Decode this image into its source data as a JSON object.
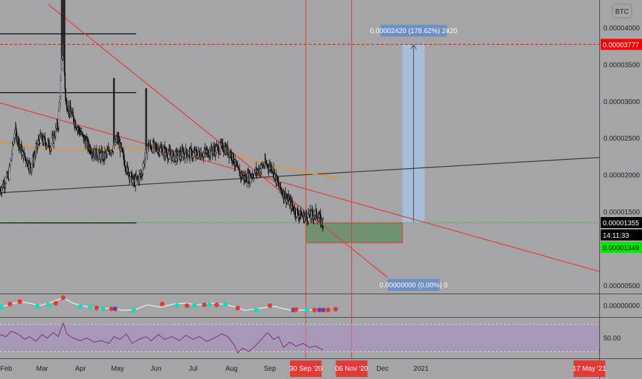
{
  "chart_data": {
    "type": "candlestick",
    "currency_badge": "BTC",
    "price_axis_labels": [
      "0.00004000",
      "0.00003500",
      "0.00003000",
      "0.00002500",
      "0.00002000",
      "0.00001500",
      "0.00000500"
    ],
    "price_axis_range": [
      3.9e-06,
      4.38e-05
    ],
    "x_axis_labels": [
      {
        "label": "Feb",
        "x": "2020-02-01"
      },
      {
        "label": "Mar",
        "x": "2020-03-01"
      },
      {
        "label": "Apr",
        "x": "2020-04-01"
      },
      {
        "label": "May",
        "x": "2020-05-01"
      },
      {
        "label": "Jun",
        "x": "2020-06-01"
      },
      {
        "label": "Jul",
        "x": "2020-07-01"
      },
      {
        "label": "Aug",
        "x": "2020-08-01"
      },
      {
        "label": "Sep",
        "x": "2020-09-01"
      },
      {
        "label": "Dec",
        "x": "2020-12-01"
      },
      {
        "label": "2021",
        "x": "2021-01-01"
      }
    ],
    "x_range": [
      "2020-01-27",
      "2021-05-25"
    ],
    "date_badges": [
      {
        "label": "30 Sep '20",
        "x": "2020-09-30"
      },
      {
        "label": "06 Nov '20",
        "x": "2020-11-06"
      },
      {
        "label": "17 May '21",
        "x": "2021-05-17"
      }
    ],
    "price_badges": {
      "target": {
        "label": "0.00003777",
        "value": 3.777e-05,
        "color": "#ff0000"
      },
      "last": {
        "label": "0.00001355",
        "value": 1.355e-05,
        "color": "#000000"
      },
      "countdown": {
        "label": "14:11:33",
        "color": "#000000"
      },
      "support": {
        "label": "0.00001349",
        "value": 1.349e-05,
        "color": "#00e600"
      }
    },
    "projection_labels": {
      "upper": "0.00002420 (178.62%) 2420",
      "lower": "0.00000000 (0.00%) 0"
    },
    "price_path": [
      [
        "2020-01-27",
        1.8e-05
      ],
      [
        "2020-02-03",
        2e-05
      ],
      [
        "2020-02-08",
        2.6e-05
      ],
      [
        "2020-02-14",
        2.3e-05
      ],
      [
        "2020-02-21",
        2.1e-05
      ],
      [
        "2020-02-28",
        2.5e-05
      ],
      [
        "2020-03-08",
        2.4e-05
      ],
      [
        "2020-03-14",
        2.7e-05
      ],
      [
        "2020-03-18",
        3.8e-05
      ],
      [
        "2020-03-20",
        3e-05
      ],
      [
        "2020-03-28",
        2.7e-05
      ],
      [
        "2020-04-05",
        2.45e-05
      ],
      [
        "2020-04-12",
        2.3e-05
      ],
      [
        "2020-04-20",
        2.25e-05
      ],
      [
        "2020-04-28",
        2.4e-05
      ],
      [
        "2020-05-01",
        2.5e-05
      ],
      [
        "2020-05-08",
        2.1e-05
      ],
      [
        "2020-05-14",
        1.9e-05
      ],
      [
        "2020-05-20",
        2e-05
      ],
      [
        "2020-05-25",
        2.4e-05
      ],
      [
        "2020-06-05",
        2.35e-05
      ],
      [
        "2020-06-15",
        2.25e-05
      ],
      [
        "2020-06-25",
        2.3e-05
      ],
      [
        "2020-07-05",
        2.28e-05
      ],
      [
        "2020-07-15",
        2.32e-05
      ],
      [
        "2020-07-25",
        2.38e-05
      ],
      [
        "2020-08-01",
        2.28e-05
      ],
      [
        "2020-08-06",
        2.05e-05
      ],
      [
        "2020-08-12",
        1.95e-05
      ],
      [
        "2020-08-20",
        2.03e-05
      ],
      [
        "2020-08-28",
        2.15e-05
      ],
      [
        "2020-09-03",
        2.1e-05
      ],
      [
        "2020-09-08",
        1.85e-05
      ],
      [
        "2020-09-12",
        1.75e-05
      ],
      [
        "2020-09-16",
        1.65e-05
      ],
      [
        "2020-09-22",
        1.5e-05
      ],
      [
        "2020-09-28",
        1.43e-05
      ],
      [
        "2020-10-04",
        1.45e-05
      ],
      [
        "2020-10-08",
        1.48e-05
      ],
      [
        "2020-10-12",
        1.38e-05
      ],
      [
        "2020-10-14",
        1.35e-05
      ]
    ],
    "ma_path": [
      [
        "2020-01-27",
        2.45e-05
      ],
      [
        "2020-02-20",
        2.38e-05
      ],
      [
        "2020-03-15",
        2.34e-05
      ],
      [
        "2020-04-10",
        2.35e-05
      ],
      [
        "2020-05-05",
        2.37e-05
      ],
      [
        "2020-06-01",
        2.34e-05
      ],
      [
        "2020-07-01",
        2.31e-05
      ],
      [
        "2020-08-01",
        2.28e-05
      ],
      [
        "2020-09-01",
        2.14e-05
      ],
      [
        "2020-10-01",
        2.03e-05
      ],
      [
        "2020-10-27",
        1.96e-05
      ]
    ],
    "trendlines": [
      {
        "name": "upper-diagonal",
        "color": "#e53935",
        "from": [
          "2020-03-06",
          4.32e-05
        ],
        "to": [
          "2020-12-05",
          6.1e-06
        ]
      },
      {
        "name": "lower-diagonal",
        "color": "#e53935",
        "from": [
          "2020-01-27",
          2.98e-05
        ],
        "to": [
          "2021-05-25",
          6.9e-06
        ]
      },
      {
        "name": "rising-support",
        "color": "#2e3b2e",
        "from": [
          "2020-01-27",
          1.76e-05
        ],
        "to": [
          "2021-05-25",
          2.24e-05
        ]
      }
    ],
    "horizontal_levels": [
      {
        "name": "resistance-high",
        "value": 3.92e-05,
        "from": "2020-01-27",
        "to": "2020-05-16",
        "color": "#000000"
      },
      {
        "name": "resistance-mid",
        "value": 3.12e-05,
        "from": "2020-01-27",
        "to": "2020-05-16",
        "color": "#000000"
      },
      {
        "name": "support-low",
        "value": 1.35e-05,
        "from": "2020-01-27",
        "to": "2020-05-16",
        "color": "#000000"
      }
    ],
    "dotted_levels": [
      {
        "name": "target-line",
        "value": 3.777e-05,
        "color": "#ff0000"
      },
      {
        "name": "last-price-line",
        "value": 1.355e-05,
        "color": "#00b400"
      }
    ],
    "vertical_lines": [
      "2020-09-30",
      "2020-11-06"
    ],
    "zones": {
      "buy_zone": {
        "x": [
          "2020-09-30",
          "2020-12-17"
        ],
        "y": [
          1.08e-05,
          1.35e-05
        ],
        "fill": "#5f8c62",
        "stroke": "#e53935"
      },
      "projection": {
        "x": [
          "2020-12-17",
          "2021-01-04"
        ],
        "y": [
          1.35e-05,
          3.77e-05
        ],
        "fill": "#a8c4e6"
      }
    },
    "oscillator": {
      "zero_label": "0.00000000",
      "range": [
        -1,
        1
      ],
      "line": [
        [
          "2020-01-27",
          -0.2
        ],
        [
          "2020-02-05",
          0.2
        ],
        [
          "2020-02-12",
          0.5
        ],
        [
          "2020-02-20",
          0.3
        ],
        [
          "2020-02-28",
          0.0
        ],
        [
          "2020-03-08",
          0.4
        ],
        [
          "2020-03-18",
          1.0
        ],
        [
          "2020-03-26",
          0.3
        ],
        [
          "2020-04-05",
          -0.1
        ],
        [
          "2020-04-15",
          -0.4
        ],
        [
          "2020-04-25",
          -0.3
        ],
        [
          "2020-05-05",
          -0.6
        ],
        [
          "2020-05-15",
          -0.5
        ],
        [
          "2020-05-25",
          0.1
        ],
        [
          "2020-06-05",
          -0.2
        ],
        [
          "2020-06-15",
          0.2
        ],
        [
          "2020-06-25",
          0.3
        ],
        [
          "2020-07-05",
          0.1
        ],
        [
          "2020-07-15",
          0.3
        ],
        [
          "2020-07-25",
          0.2
        ],
        [
          "2020-08-05",
          -0.2
        ],
        [
          "2020-08-12",
          -0.6
        ],
        [
          "2020-08-25",
          -0.3
        ],
        [
          "2020-09-05",
          -0.1
        ],
        [
          "2020-09-12",
          -0.4
        ],
        [
          "2020-09-20",
          -0.6
        ],
        [
          "2020-10-01",
          -0.55
        ],
        [
          "2020-10-14",
          -0.55
        ]
      ],
      "dots": [
        [
          "2020-01-28",
          -0.2,
          "#00e0c0"
        ],
        [
          "2020-02-04",
          0.2,
          "#e53935"
        ],
        [
          "2020-02-12",
          0.5,
          "#e53935"
        ],
        [
          "2020-02-26",
          -0.1,
          "#00e0c0"
        ],
        [
          "2020-03-06",
          0.1,
          "#00e0c0"
        ],
        [
          "2020-03-12",
          0.3,
          "#e53935"
        ],
        [
          "2020-03-18",
          1.0,
          "#e53935"
        ],
        [
          "2020-04-01",
          -0.1,
          "#00e0c0"
        ],
        [
          "2020-04-09",
          -0.2,
          "#00e0c0"
        ],
        [
          "2020-04-14",
          -0.3,
          "#e53935"
        ],
        [
          "2020-04-19",
          -0.4,
          "#00e0c0"
        ],
        [
          "2020-04-26",
          -0.4,
          "#e53935"
        ],
        [
          "2020-04-29",
          -0.4,
          "#7b3aa0"
        ],
        [
          "2020-05-14",
          -0.6,
          "#00e0c0"
        ],
        [
          "2020-06-06",
          0.2,
          "#e53935"
        ],
        [
          "2020-06-18",
          0.0,
          "#00e0c0"
        ],
        [
          "2020-06-26",
          0.0,
          "#e53935"
        ],
        [
          "2020-07-02",
          0.0,
          "#00e0c0"
        ],
        [
          "2020-07-10",
          0.1,
          "#e53935"
        ],
        [
          "2020-07-14",
          0.1,
          "#00e0c0"
        ],
        [
          "2020-07-20",
          0.1,
          "#e53935"
        ],
        [
          "2020-07-27",
          0.1,
          "#00e0c0"
        ],
        [
          "2020-08-06",
          -0.3,
          "#e53935"
        ],
        [
          "2020-08-21",
          -0.55,
          "#00e0c0"
        ],
        [
          "2020-09-01",
          0.0,
          "#e53935"
        ],
        [
          "2020-09-20",
          -0.55,
          "#7b3aa0"
        ],
        [
          "2020-09-22",
          -0.5,
          "#e53935"
        ],
        [
          "2020-10-01",
          -0.55,
          "#00e0c0"
        ],
        [
          "2020-10-07",
          -0.55,
          "#e53935"
        ],
        [
          "2020-10-11",
          -0.55,
          "#7b3aa0"
        ],
        [
          "2020-10-14",
          -0.55,
          "#7b3aa0"
        ],
        [
          "2020-10-18",
          -0.55,
          "#e53935"
        ],
        [
          "2020-10-24",
          -0.45,
          "#e53935"
        ]
      ]
    },
    "rsi": {
      "label": "50.00",
      "range": [
        20,
        80
      ],
      "band": [
        30,
        70
      ],
      "line": [
        [
          "2020-01-27",
          55
        ],
        [
          "2020-02-01",
          52
        ],
        [
          "2020-02-05",
          60
        ],
        [
          "2020-02-08",
          58
        ],
        [
          "2020-02-12",
          54
        ],
        [
          "2020-02-16",
          48
        ],
        [
          "2020-02-20",
          52
        ],
        [
          "2020-02-25",
          45
        ],
        [
          "2020-03-01",
          55
        ],
        [
          "2020-03-05",
          50
        ],
        [
          "2020-03-10",
          58
        ],
        [
          "2020-03-14",
          52
        ],
        [
          "2020-03-18",
          72
        ],
        [
          "2020-03-21",
          56
        ],
        [
          "2020-03-26",
          50
        ],
        [
          "2020-04-01",
          46
        ],
        [
          "2020-04-06",
          50
        ],
        [
          "2020-04-12",
          44
        ],
        [
          "2020-04-18",
          46
        ],
        [
          "2020-04-24",
          42
        ],
        [
          "2020-04-28",
          52
        ],
        [
          "2020-05-03",
          48
        ],
        [
          "2020-05-08",
          56
        ],
        [
          "2020-05-13",
          42
        ],
        [
          "2020-05-18",
          48
        ],
        [
          "2020-05-24",
          52
        ],
        [
          "2020-05-28",
          46
        ],
        [
          "2020-06-03",
          55
        ],
        [
          "2020-06-08",
          48
        ],
        [
          "2020-06-14",
          52
        ],
        [
          "2020-06-20",
          46
        ],
        [
          "2020-06-25",
          54
        ],
        [
          "2020-07-01",
          48
        ],
        [
          "2020-07-06",
          52
        ],
        [
          "2020-07-12",
          45
        ],
        [
          "2020-07-18",
          50
        ],
        [
          "2020-07-24",
          56
        ],
        [
          "2020-07-29",
          52
        ],
        [
          "2020-08-03",
          40
        ],
        [
          "2020-08-06",
          28
        ],
        [
          "2020-08-10",
          35
        ],
        [
          "2020-08-15",
          30
        ],
        [
          "2020-08-20",
          38
        ],
        [
          "2020-08-26",
          50
        ],
        [
          "2020-08-30",
          58
        ],
        [
          "2020-09-04",
          48
        ],
        [
          "2020-09-08",
          52
        ],
        [
          "2020-09-12",
          36
        ],
        [
          "2020-09-17",
          44
        ],
        [
          "2020-09-22",
          38
        ],
        [
          "2020-09-28",
          42
        ],
        [
          "2020-10-03",
          36
        ],
        [
          "2020-10-08",
          38
        ],
        [
          "2020-10-14",
          32
        ]
      ]
    }
  }
}
